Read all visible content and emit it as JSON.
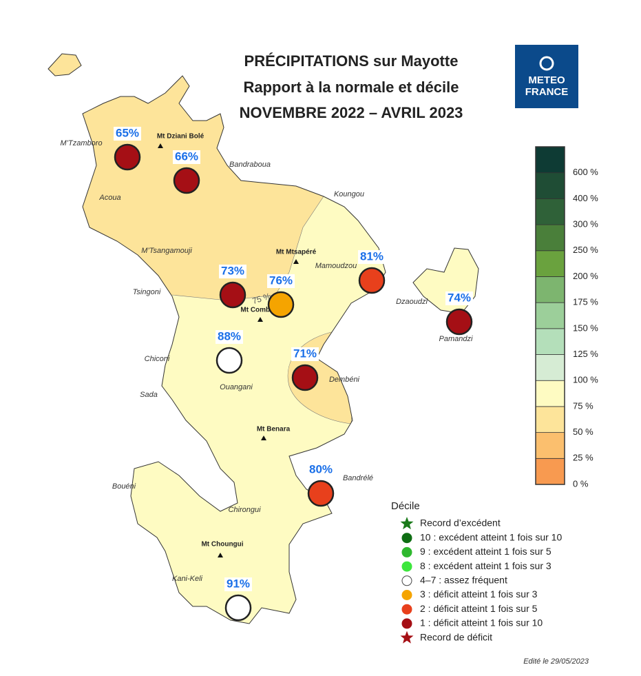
{
  "title": [
    "PRÉCIPITATIONS sur Mayotte",
    "Rapport à la normale et décile",
    "NOVEMBRE 2022 – AVRIL 2023"
  ],
  "logo": [
    "METEO",
    "FRANCE"
  ],
  "places": [
    "M’Tzamboro",
    "Bandraboua",
    "Koungou",
    "Acoua",
    "M’Tsangamouji",
    "Mamoudzou",
    "Tsingoni",
    "Dzaoudzi",
    "Pamandzi",
    "Chiconi",
    "Dembéni",
    "Ouangani",
    "Sada",
    "Bandrélé",
    "Bouéni",
    "Chirongui",
    "Kani-Keli"
  ],
  "peaks": [
    "Mt Dziani Bolé",
    "Mt Mtsapéré",
    "Mt Combani",
    "Mt Benara",
    "Mt Choungui"
  ],
  "isoline_label": "75 %",
  "stations": [
    {
      "value": 65,
      "label": "65%",
      "color": "#a50f15"
    },
    {
      "value": 66,
      "label": "66%",
      "color": "#a50f15"
    },
    {
      "value": 73,
      "label": "73%",
      "color": "#a50f15"
    },
    {
      "value": 76,
      "label": "76%",
      "color": "#f5a400"
    },
    {
      "value": 81,
      "label": "81%",
      "color": "#e8401c"
    },
    {
      "value": 74,
      "label": "74%",
      "color": "#a50f15"
    },
    {
      "value": 88,
      "label": "88%",
      "color": "#ffffff"
    },
    {
      "value": 71,
      "label": "71%",
      "color": "#a50f15"
    },
    {
      "value": 80,
      "label": "80%",
      "color": "#e8401c"
    },
    {
      "value": 91,
      "label": "91%",
      "color": "#ffffff"
    }
  ],
  "scale": {
    "colors": [
      "#f89a50",
      "#fbbf6e",
      "#fde49a",
      "#fefbc2",
      "#d6ecd4",
      "#b4dfba",
      "#9ccf9a",
      "#7db56f",
      "#6aa23e",
      "#4a7f3a",
      "#2f6138",
      "#1f4d35",
      "#0e3b34"
    ],
    "labels": [
      "0 %",
      "25 %",
      "50 %",
      "75 %",
      "100 %",
      "125 %",
      "150 %",
      "175 %",
      "200 %",
      "250 %",
      "300 %",
      "400 %",
      "600 %"
    ]
  },
  "legend": {
    "title": "Décile",
    "items": [
      {
        "label": "Record d’excédent",
        "color": "#1a7a1a",
        "symbol": "star"
      },
      {
        "label": "10 : excédent atteint 1 fois sur 10",
        "color": "#0f6e14",
        "symbol": "circle"
      },
      {
        "label": "9 : excédent atteint 1 fois sur 5",
        "color": "#2eb82e",
        "symbol": "circle"
      },
      {
        "label": "8 : excédent atteint 1 fois sur 3",
        "color": "#3de63d",
        "symbol": "circle"
      },
      {
        "label": "4–7 : assez fréquent",
        "color": "#ffffff",
        "symbol": "circle"
      },
      {
        "label": "3 : déficit atteint 1 fois sur 3",
        "color": "#f5a400",
        "symbol": "circle"
      },
      {
        "label": "2 : déficit atteint 1 fois sur 5",
        "color": "#e8401c",
        "symbol": "circle"
      },
      {
        "label": "1 : déficit  atteint 1 fois sur 10",
        "color": "#a50f15",
        "symbol": "circle"
      },
      {
        "label": "Record de déficit",
        "color": "#a50f15",
        "symbol": "star"
      }
    ]
  },
  "edit_date": "Edité le 29/05/2023"
}
